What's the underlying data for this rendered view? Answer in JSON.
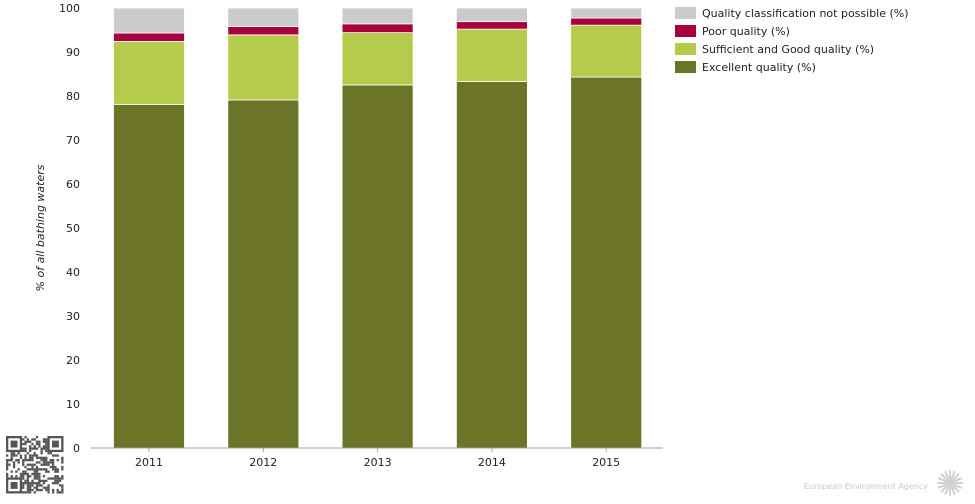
{
  "chart_data": {
    "type": "bar",
    "stacked": true,
    "categories": [
      "2011",
      "2012",
      "2013",
      "2014",
      "2015"
    ],
    "series": [
      {
        "name": "Excellent quality (%)",
        "color": "#6b7427",
        "values": [
          78.1,
          79.1,
          82.5,
          83.3,
          84.3
        ]
      },
      {
        "name": "Sufficient and Good quality (%)",
        "color": "#b5cb4b",
        "values": [
          14.3,
          14.8,
          11.9,
          11.9,
          11.8
        ]
      },
      {
        "name": "Poor quality (%)",
        "color": "#a7003d",
        "values": [
          1.9,
          1.9,
          2.0,
          1.7,
          1.6
        ]
      },
      {
        "name": "Quality classification not possible (%)",
        "color": "#cbcbcb",
        "values": [
          5.7,
          4.2,
          3.6,
          3.1,
          2.3
        ]
      }
    ],
    "ylabel": "% of all bathing waters",
    "xlabel": "",
    "title": "",
    "ylim": [
      0,
      100
    ],
    "yticks": [
      "0",
      "10",
      "20",
      "30",
      "40",
      "50",
      "60",
      "70",
      "80",
      "90",
      "100"
    ],
    "grid": false,
    "legend_position": "top-right",
    "legend_order": [
      "Quality classification not possible (%)",
      "Poor quality (%)",
      "Sufficient and Good quality (%)",
      "Excellent quality (%)"
    ]
  },
  "footer": {
    "credit": "European Environment Agency",
    "qr_icon": "qr-code-icon",
    "logo_icon": "eea-sun-logo-icon"
  }
}
